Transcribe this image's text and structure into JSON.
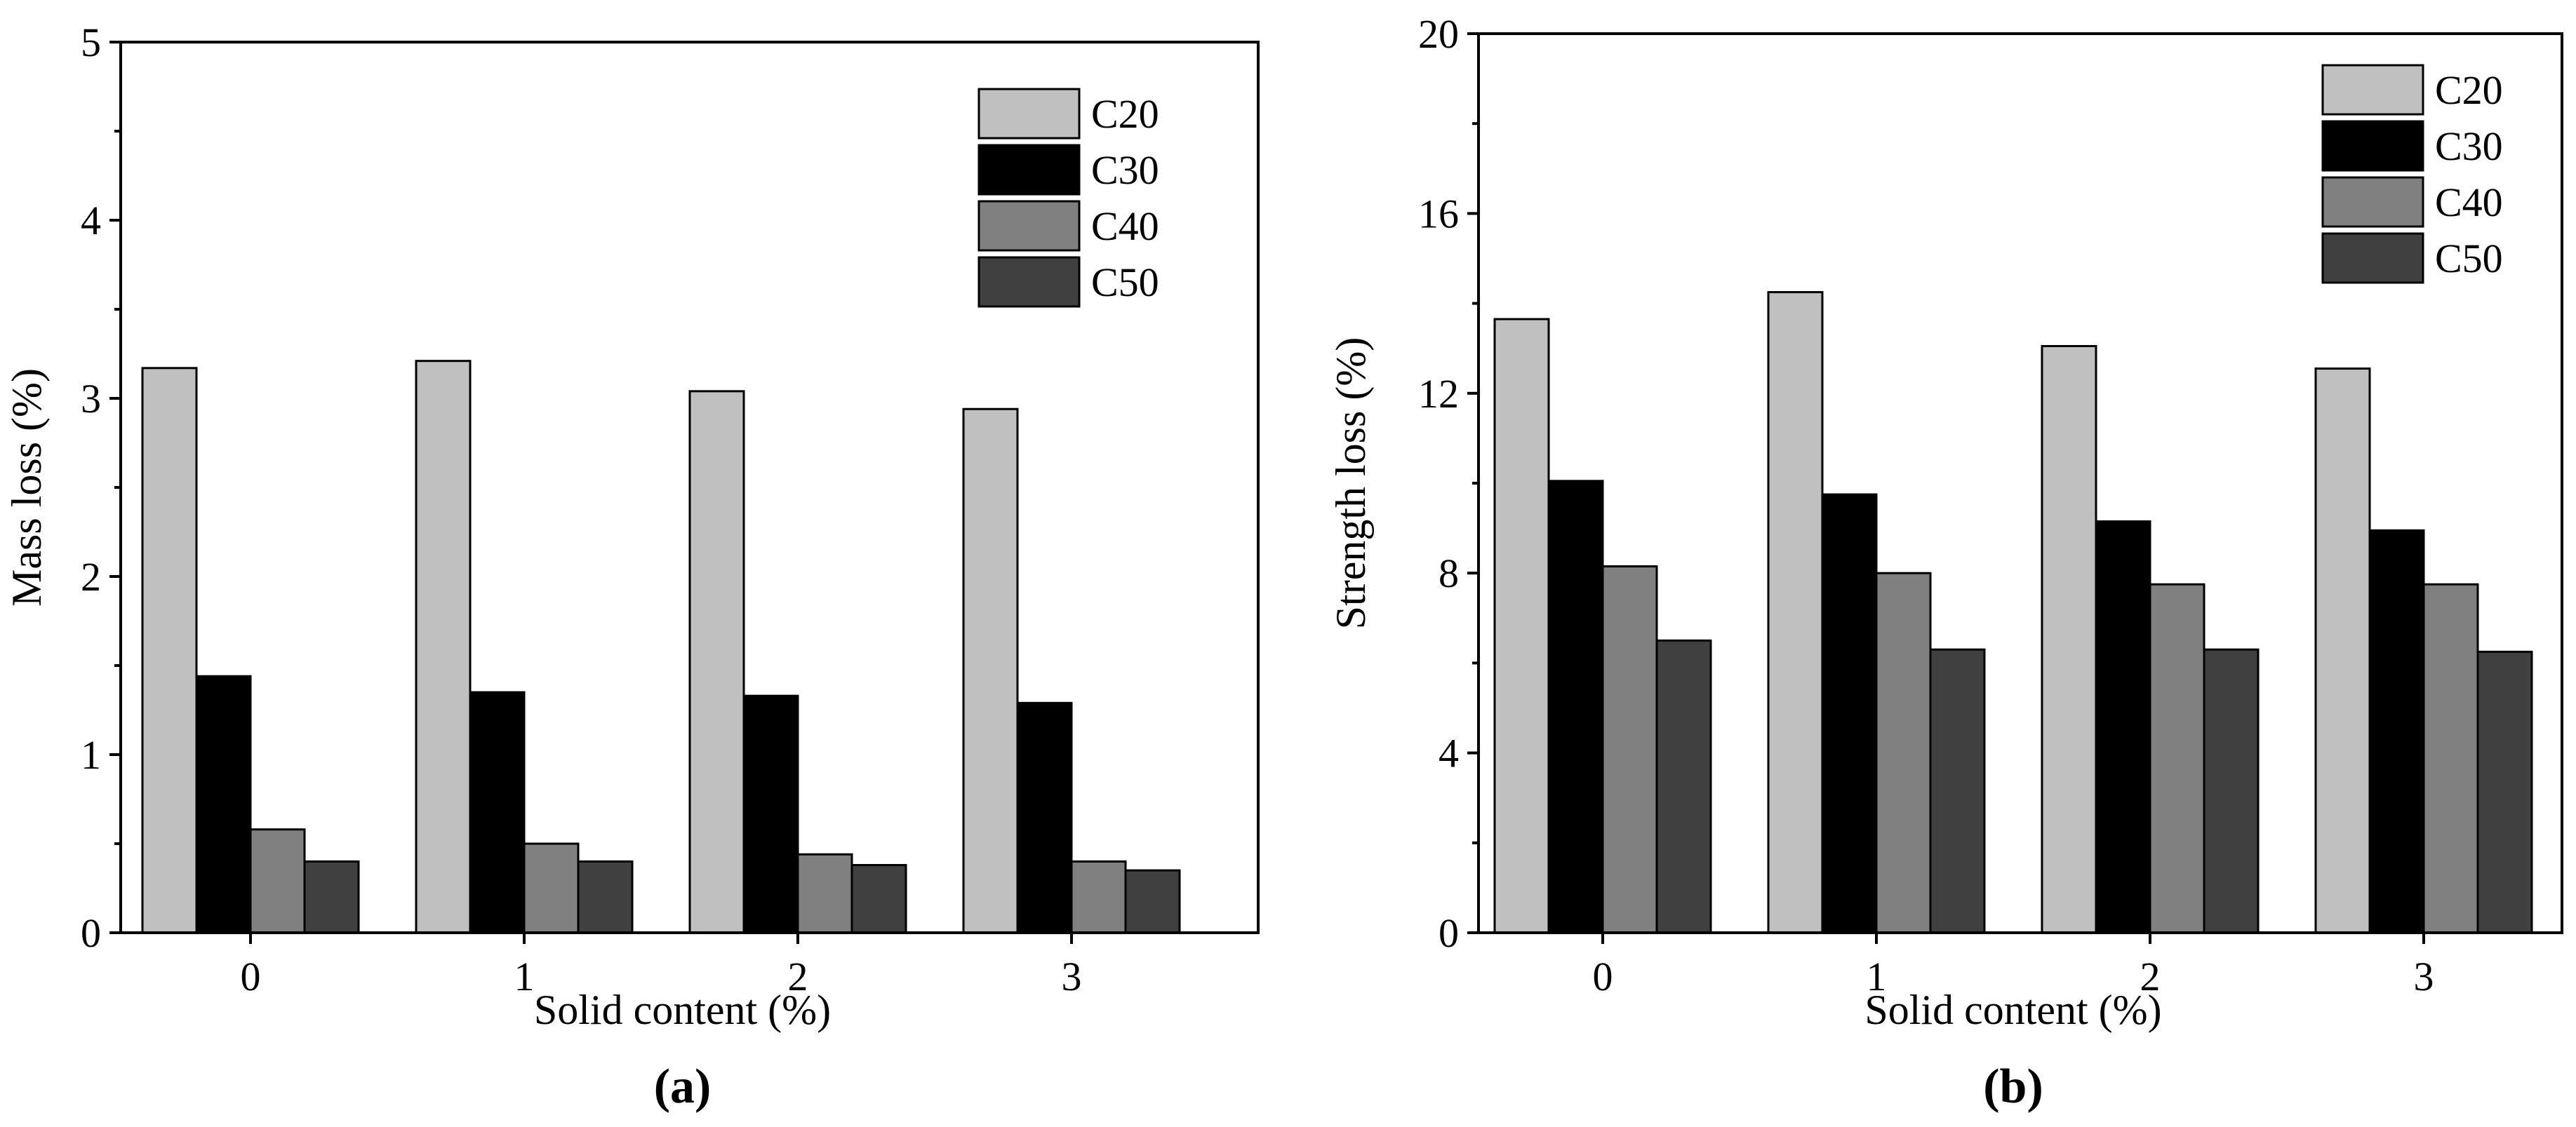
{
  "chart_data": [
    {
      "id": "a",
      "type": "bar",
      "panel_label": "(a)",
      "xlabel": "Solid content  (%)",
      "ylabel": "Mass loss  (%)",
      "ylim": [
        0,
        5
      ],
      "yticks": [
        0,
        1,
        2,
        3,
        4,
        5
      ],
      "categories": [
        "0",
        "1",
        "2",
        "3"
      ],
      "legend_position": "top-right",
      "grid": false,
      "series": [
        {
          "name": "C20",
          "color": "#c0c0c0",
          "values": [
            3.17,
            3.21,
            3.04,
            2.94
          ]
        },
        {
          "name": "C30",
          "color": "#000000",
          "values": [
            1.44,
            1.35,
            1.33,
            1.29
          ]
        },
        {
          "name": "C40",
          "color": "#808080",
          "values": [
            0.58,
            0.5,
            0.44,
            0.4
          ]
        },
        {
          "name": "C50",
          "color": "#404040",
          "values": [
            0.4,
            0.4,
            0.38,
            0.35
          ]
        }
      ]
    },
    {
      "id": "b",
      "type": "bar",
      "panel_label": "(b)",
      "xlabel": "Solid content (%)",
      "ylabel": "Strength loss  (%)",
      "ylim": [
        0,
        20
      ],
      "yticks": [
        0,
        4,
        8,
        12,
        16,
        20
      ],
      "categories": [
        "0",
        "1",
        "2",
        "3"
      ],
      "legend_position": "top-right",
      "grid": false,
      "series": [
        {
          "name": "C20",
          "color": "#c0c0c0",
          "values": [
            13.65,
            14.25,
            13.05,
            12.55
          ]
        },
        {
          "name": "C30",
          "color": "#000000",
          "values": [
            10.05,
            9.75,
            9.15,
            8.95
          ]
        },
        {
          "name": "C40",
          "color": "#808080",
          "values": [
            8.15,
            8.0,
            7.75,
            7.75
          ]
        },
        {
          "name": "C50",
          "color": "#404040",
          "values": [
            6.5,
            6.3,
            6.3,
            6.25
          ]
        }
      ]
    }
  ]
}
